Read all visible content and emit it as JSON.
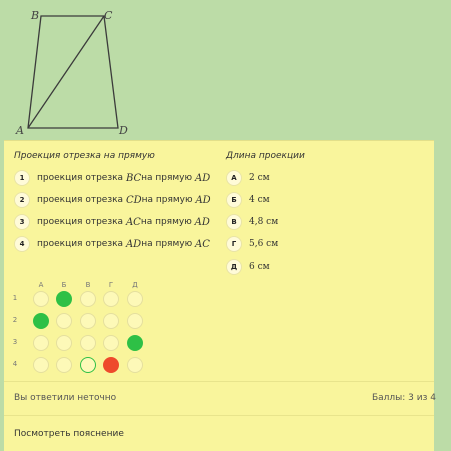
{
  "figure": {
    "vertices": {
      "a": "A",
      "b": "B",
      "c": "C",
      "d": "D"
    }
  },
  "task": {
    "left_header": "Проекция отрезка на прямую",
    "right_header": "Длина проекции",
    "items": [
      {
        "num": "1",
        "prefix": "проекция отрезка ",
        "seg": "BC",
        "mid": " на прямую ",
        "line": "AD"
      },
      {
        "num": "2",
        "prefix": "проекция отрезка ",
        "seg": "CD",
        "mid": " на прямую ",
        "line": "AD"
      },
      {
        "num": "3",
        "prefix": "проекция отрезка ",
        "seg": "AC",
        "mid": " на прямую ",
        "line": "AD"
      },
      {
        "num": "4",
        "prefix": "проекция отрезка ",
        "seg": "AD",
        "mid": " на прямую ",
        "line": "AC"
      }
    ],
    "answers": [
      {
        "letter": "А",
        "value": "2 см"
      },
      {
        "letter": "Б",
        "value": "4 см"
      },
      {
        "letter": "В",
        "value": "4,8 см"
      },
      {
        "letter": "Г",
        "value": "5,6 см"
      },
      {
        "letter": "Д",
        "value": "6 см"
      }
    ]
  },
  "grid": {
    "columns": [
      "А",
      "Б",
      "В",
      "Г",
      "Д"
    ],
    "rows": [
      "1",
      "2",
      "3",
      "4"
    ],
    "marks": [
      [
        "empty",
        "green",
        "empty",
        "empty",
        "empty"
      ],
      [
        "green",
        "empty",
        "empty",
        "empty",
        "empty"
      ],
      [
        "empty",
        "empty",
        "empty",
        "empty",
        "green"
      ],
      [
        "empty",
        "empty",
        "ring",
        "red",
        "empty"
      ]
    ]
  },
  "result": {
    "message": "Вы ответили неточно",
    "score": "Баллы: 3 из 4"
  },
  "explanation_link": "Посмотреть пояснение"
}
